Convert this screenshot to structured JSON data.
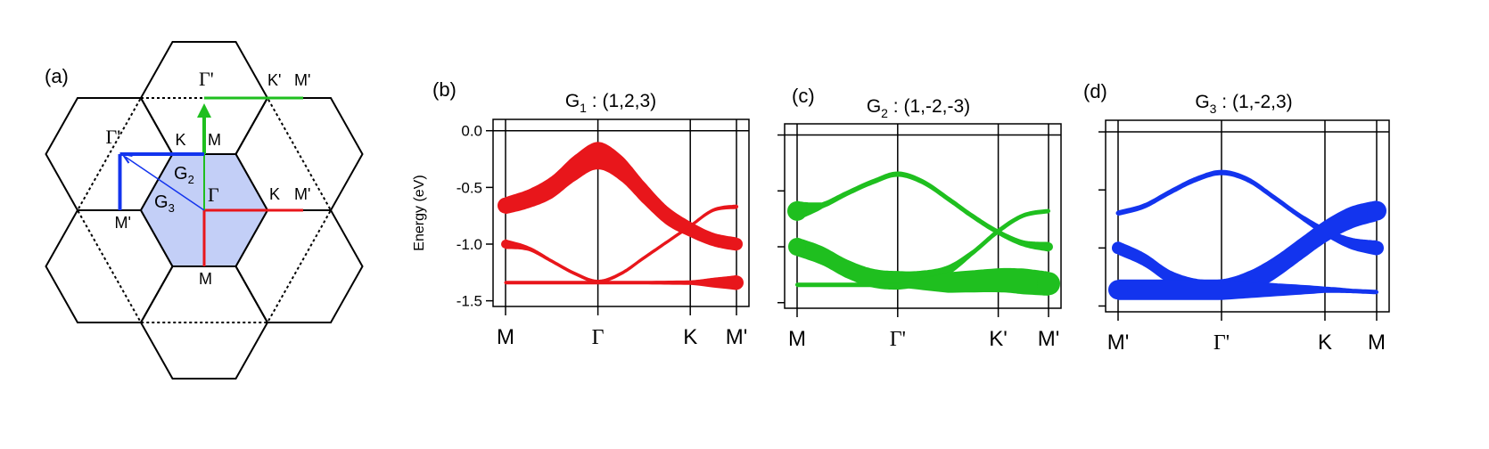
{
  "panel_a": {
    "label": "(a)",
    "colors": {
      "g1": "#e8161b",
      "g2": "#1fbf1f",
      "g3": "#1334ee",
      "bz_fill": "#c3cff7"
    },
    "points": {
      "gamma": "Γ",
      "gamma_prime_top": "Γ'",
      "gamma_prime_left": "Γ'",
      "k_top": "K",
      "m_top": "M",
      "k_right": "K",
      "m_prime_right": "M'",
      "k_prime_top": "K'",
      "m_prime_top": "M'",
      "m_prime_left": "M'",
      "m_bottom": "M"
    },
    "vectors": {
      "g2": "G",
      "g2_sub": "2",
      "g3": "G",
      "g3_sub": "3"
    }
  },
  "chart_data": [
    {
      "type": "line",
      "panel_label": "(b)",
      "title": "G",
      "title_sub": "1",
      "title_rest": " : (1,2,3)",
      "ylabel": "Energy (eV)",
      "yticks": [
        "0.0",
        "-0.5",
        "-1.0",
        "-1.5"
      ],
      "ylim": [
        -1.55,
        0.1
      ],
      "x_labels": [
        "M",
        "Γ",
        "K",
        "M'"
      ],
      "x_label_positions": [
        0,
        1,
        2,
        2.5
      ],
      "color": "#e8161b",
      "series": [
        {
          "x": [
            0,
            0.25,
            0.5,
            0.75,
            1,
            1.25,
            1.5,
            1.75,
            2,
            2.25,
            2.5
          ],
          "y": [
            -0.66,
            -0.6,
            -0.5,
            -0.33,
            -0.22,
            -0.33,
            -0.55,
            -0.75,
            -0.87,
            -0.96,
            -1.0
          ],
          "weight": [
            18,
            20,
            24,
            28,
            30,
            28,
            24,
            20,
            16,
            14,
            14
          ]
        },
        {
          "x": [
            0,
            0.25,
            0.5,
            0.75,
            1,
            1.25,
            1.5,
            1.75,
            2,
            2.25,
            2.5
          ],
          "y": [
            -1.0,
            -1.04,
            -1.15,
            -1.26,
            -1.33,
            -1.26,
            -1.12,
            -0.98,
            -0.84,
            -0.7,
            -0.67
          ],
          "weight": [
            10,
            4,
            3,
            3,
            3,
            3,
            3,
            3,
            3,
            3,
            4
          ]
        },
        {
          "x": [
            0,
            0.5,
            1,
            1.5,
            2,
            2.25,
            2.5
          ],
          "y": [
            -1.34,
            -1.34,
            -1.34,
            -1.34,
            -1.34,
            -1.34,
            -1.34
          ],
          "weight": [
            3,
            3,
            3,
            3,
            4,
            10,
            16
          ]
        }
      ]
    },
    {
      "type": "line",
      "panel_label": "(c)",
      "title": "G",
      "title_sub": "2",
      "title_rest": " : (1,-2,-3)",
      "ylabel": "",
      "yticks": [],
      "ylim": [
        -1.55,
        0.1
      ],
      "x_labels": [
        "M",
        "Γ'",
        "K'",
        "M'"
      ],
      "x_label_positions": [
        0,
        1,
        2,
        2.5
      ],
      "color": "#1fbf1f",
      "series": [
        {
          "x": [
            0,
            0.25,
            0.5,
            0.75,
            1,
            1.25,
            1.5,
            1.75,
            2,
            2.25,
            2.5
          ],
          "y": [
            -0.68,
            -0.63,
            -0.52,
            -0.42,
            -0.35,
            -0.42,
            -0.57,
            -0.73,
            -0.87,
            -0.97,
            -1.0
          ],
          "weight": [
            22,
            6,
            5,
            5,
            5,
            5,
            5,
            5,
            5,
            6,
            10
          ]
        },
        {
          "x": [
            0,
            0.25,
            0.5,
            0.75,
            1,
            1.25,
            1.5,
            1.75,
            2,
            2.25,
            2.5
          ],
          "y": [
            -1.0,
            -1.08,
            -1.2,
            -1.28,
            -1.3,
            -1.28,
            -1.21,
            -1.05,
            -0.86,
            -0.72,
            -0.68
          ],
          "weight": [
            20,
            20,
            20,
            20,
            20,
            16,
            10,
            5,
            5,
            4,
            4
          ]
        },
        {
          "x": [
            0,
            0.5,
            1,
            1.5,
            2,
            2.25,
            2.5
          ],
          "y": [
            -1.34,
            -1.34,
            -1.34,
            -1.32,
            -1.3,
            -1.31,
            -1.33
          ],
          "weight": [
            4,
            4,
            4,
            22,
            26,
            28,
            26
          ]
        }
      ]
    },
    {
      "type": "line",
      "panel_label": "(d)",
      "title": "G",
      "title_sub": "3",
      "title_rest": " : (1,-2,3)",
      "ylabel": "",
      "yticks": [],
      "ylim": [
        -1.55,
        0.1
      ],
      "x_labels": [
        "M'",
        "Γ'",
        "K",
        "M"
      ],
      "x_label_positions": [
        0,
        1,
        2,
        2.5
      ],
      "color": "#1334ee",
      "series": [
        {
          "x": [
            0,
            0.25,
            0.5,
            0.75,
            1,
            1.25,
            1.5,
            1.75,
            2,
            2.25,
            2.5
          ],
          "y": [
            -0.7,
            -0.64,
            -0.52,
            -0.41,
            -0.35,
            -0.41,
            -0.56,
            -0.72,
            -0.86,
            -0.96,
            -1.0
          ],
          "weight": [
            5,
            5,
            5,
            5,
            5,
            5,
            5,
            5,
            8,
            12,
            16
          ]
        },
        {
          "x": [
            0,
            0.25,
            0.5,
            0.75,
            1,
            1.25,
            1.5,
            1.75,
            2,
            2.25,
            2.5
          ],
          "y": [
            -1.0,
            -1.1,
            -1.25,
            -1.33,
            -1.35,
            -1.3,
            -1.18,
            -1.02,
            -0.86,
            -0.74,
            -0.68
          ],
          "weight": [
            14,
            14,
            14,
            16,
            20,
            24,
            24,
            24,
            24,
            24,
            22
          ]
        },
        {
          "x": [
            0,
            0.5,
            1,
            1.5,
            2,
            2.25,
            2.5
          ],
          "y": [
            -1.36,
            -1.36,
            -1.36,
            -1.36,
            -1.36,
            -1.37,
            -1.38
          ],
          "weight": [
            22,
            22,
            22,
            14,
            6,
            4,
            4
          ]
        }
      ]
    }
  ]
}
